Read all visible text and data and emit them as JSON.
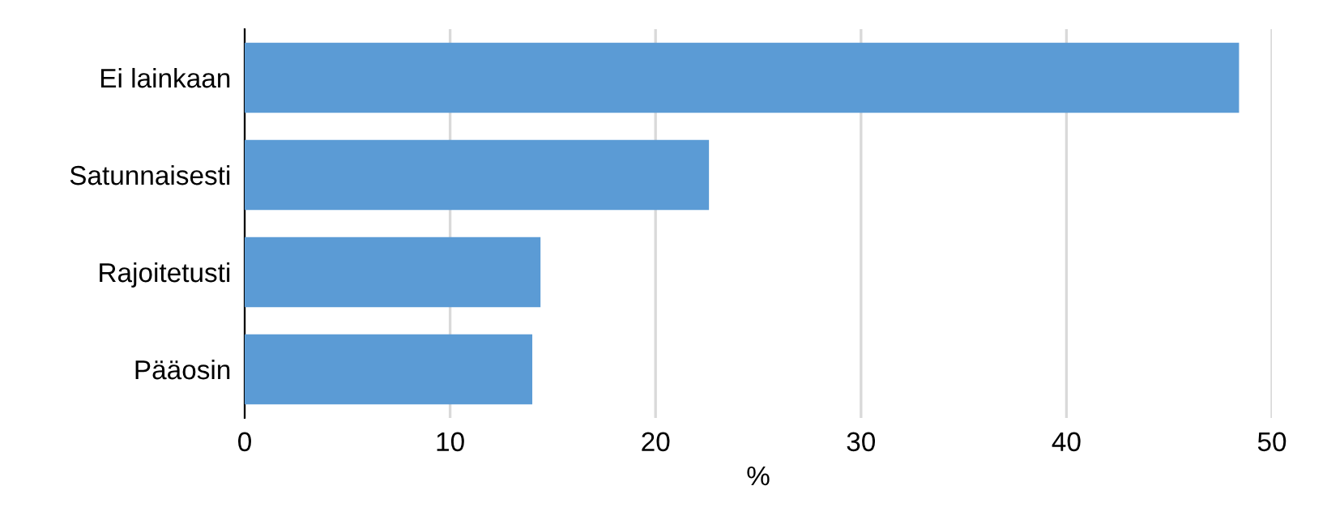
{
  "chart_data": {
    "type": "bar",
    "orientation": "horizontal",
    "xlabel": "%",
    "categories": [
      "Ei lainkaan",
      "Satunnaisesti",
      "Rajoitetusti",
      "Pääosin"
    ],
    "values": [
      48.4,
      22.6,
      14.4,
      14.0
    ],
    "color": "#5b9bd5",
    "xlim": [
      0,
      50
    ],
    "xticks": [
      0,
      10,
      20,
      30,
      40,
      50
    ],
    "grid": "x",
    "legend": false
  }
}
